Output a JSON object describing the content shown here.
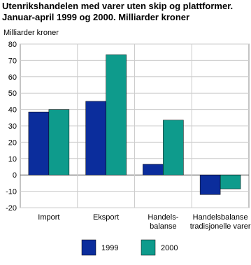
{
  "chart_data": {
    "type": "bar",
    "title": "Utenrikshandelen med varer uten skip og plattformer.",
    "subtitle": "Januar-april 1999 og 2000. Milliarder kroner",
    "y_label": "Milliarder kroner",
    "categories": [
      "Import",
      "Eksport",
      "Handels-\nbalanse",
      "Handelsbalanse\ntradisjonelle varer"
    ],
    "series": [
      {
        "name": "1999",
        "color": "#0b2d9c",
        "values": [
          38.5,
          45,
          6.5,
          -12
        ]
      },
      {
        "name": "2000",
        "color": "#0e9b8c",
        "values": [
          40,
          73.5,
          33.5,
          -8.5
        ]
      }
    ],
    "ylim": [
      -20,
      80
    ],
    "yticks": [
      -20,
      -10,
      0,
      10,
      20,
      30,
      40,
      50,
      60,
      70,
      80
    ],
    "grid": true
  }
}
